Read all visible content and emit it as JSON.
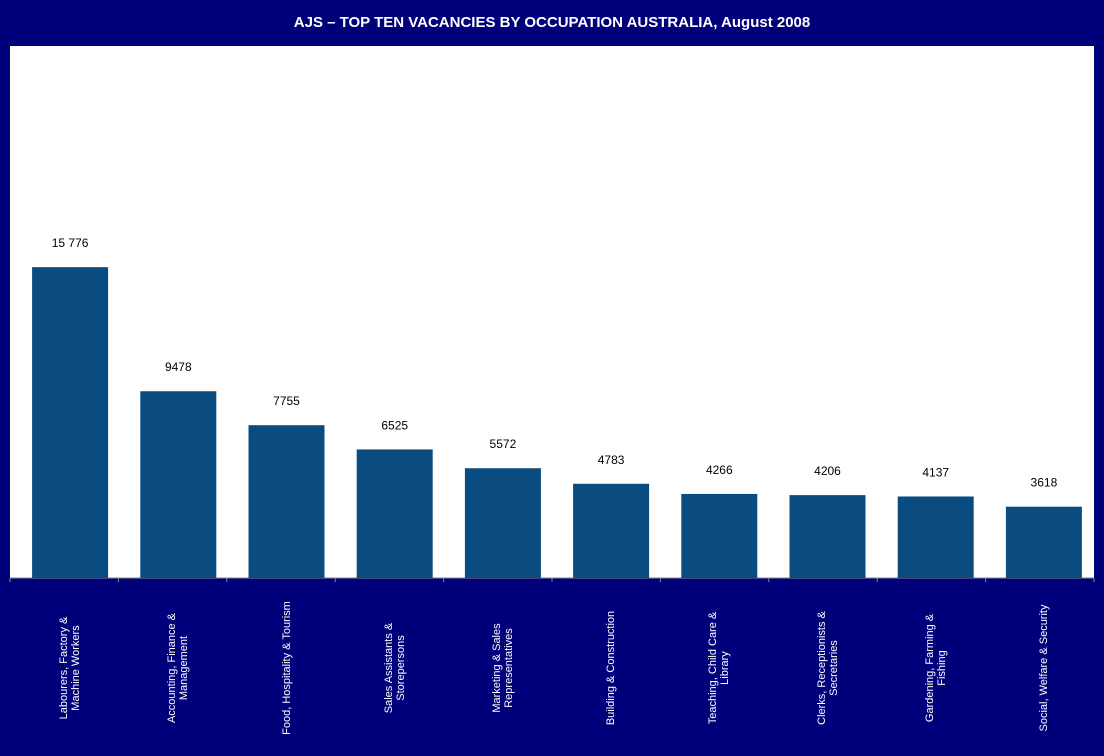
{
  "chart_data": {
    "type": "bar",
    "title": "AJS – TOP TEN VACANCIES BY OCCUPATION AUSTRALIA, August 2008",
    "categories": [
      "Labourers, Factory &\nMachine Workers",
      "Accounting, Finance &\nManagement",
      "Food, Hospitality & Tourism",
      "Sales Assistants &\nStorepersons",
      "Marketing & Sales\nRepresentatives",
      "Building & Construction",
      "Teaching, Child Care &\nLibrary",
      "Clerks, Receptionists &\nSecretaries",
      "Gardening, Farming &\nFishing",
      "Social, Welfare & Security"
    ],
    "values": [
      15776,
      9478,
      7755,
      6525,
      5572,
      4783,
      4266,
      4206,
      4137,
      3618
    ],
    "value_labels": [
      "15 776",
      "9478",
      "7755",
      "6525",
      "5572",
      "4783",
      "4266",
      "4206",
      "4137",
      "3618"
    ],
    "color": "#0a4c80",
    "ylim": [
      0,
      27000
    ]
  }
}
